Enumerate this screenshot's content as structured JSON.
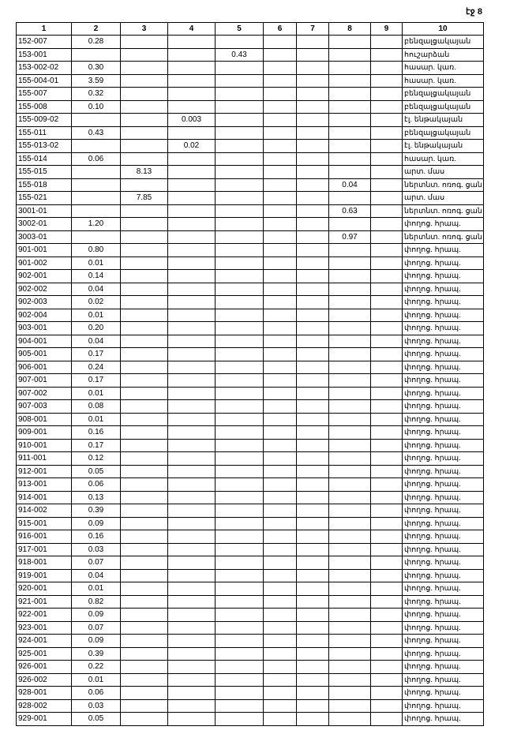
{
  "page_label": "էջ 8",
  "headers": [
    "1",
    "2",
    "3",
    "4",
    "5",
    "6",
    "7",
    "8",
    "9",
    "10"
  ],
  "rows": [
    [
      "152-007",
      "0.28",
      "",
      "",
      "",
      "",
      "",
      "",
      "",
      "բենզալցակայան"
    ],
    [
      "153-001",
      "",
      "",
      "",
      "0.43",
      "",
      "",
      "",
      "",
      "հուշարձան"
    ],
    [
      "153-002-02",
      "0.30",
      "",
      "",
      "",
      "",
      "",
      "",
      "",
      "հասար. կառ."
    ],
    [
      "155-004-01",
      "3.59",
      "",
      "",
      "",
      "",
      "",
      "",
      "",
      "հասար. կառ."
    ],
    [
      "155-007",
      "0.32",
      "",
      "",
      "",
      "",
      "",
      "",
      "",
      "բենզալցակայան"
    ],
    [
      "155-008",
      "0.10",
      "",
      "",
      "",
      "",
      "",
      "",
      "",
      "բենզալցակայան"
    ],
    [
      "155-009-02",
      "",
      "",
      "0.003",
      "",
      "",
      "",
      "",
      "",
      "էլ. ենթակայան"
    ],
    [
      "155-011",
      "0.43",
      "",
      "",
      "",
      "",
      "",
      "",
      "",
      "բենզալցակայան"
    ],
    [
      "155-013-02",
      "",
      "",
      "0.02",
      "",
      "",
      "",
      "",
      "",
      "էլ. ենթակայան"
    ],
    [
      "155-014",
      "0.06",
      "",
      "",
      "",
      "",
      "",
      "",
      "",
      "հասար. կառ."
    ],
    [
      "155-015",
      "",
      "8.13",
      "",
      "",
      "",
      "",
      "",
      "",
      "արտ. մաս"
    ],
    [
      "155-018",
      "",
      "",
      "",
      "",
      "",
      "",
      "0.04",
      "",
      "ներտնտ. ոռոգ. ցան"
    ],
    [
      "155-021",
      "",
      "7.85",
      "",
      "",
      "",
      "",
      "",
      "",
      "արտ. մաս"
    ],
    [
      "3001-01",
      "",
      "",
      "",
      "",
      "",
      "",
      "0.63",
      "",
      "ներտնտ. ոռոգ. ցան"
    ],
    [
      "3002-01",
      "1.20",
      "",
      "",
      "",
      "",
      "",
      "",
      "",
      "փողոց. հրապ."
    ],
    [
      "3003-01",
      "",
      "",
      "",
      "",
      "",
      "",
      "0.97",
      "",
      "ներտնտ. ոռոգ. ցան"
    ],
    [
      "901-001",
      "0.80",
      "",
      "",
      "",
      "",
      "",
      "",
      "",
      "փողոց. հրապ."
    ],
    [
      "901-002",
      "0.01",
      "",
      "",
      "",
      "",
      "",
      "",
      "",
      "փողոց. հրապ."
    ],
    [
      "902-001",
      "0.14",
      "",
      "",
      "",
      "",
      "",
      "",
      "",
      "փողոց. հրապ."
    ],
    [
      "902-002",
      "0.04",
      "",
      "",
      "",
      "",
      "",
      "",
      "",
      "փողոց. հրապ."
    ],
    [
      "902-003",
      "0.02",
      "",
      "",
      "",
      "",
      "",
      "",
      "",
      "փողոց. հրապ."
    ],
    [
      "902-004",
      "0.01",
      "",
      "",
      "",
      "",
      "",
      "",
      "",
      "փողոց. հրապ."
    ],
    [
      "903-001",
      "0.20",
      "",
      "",
      "",
      "",
      "",
      "",
      "",
      "փողոց. հրապ."
    ],
    [
      "904-001",
      "0.04",
      "",
      "",
      "",
      "",
      "",
      "",
      "",
      "փողոց. հրապ."
    ],
    [
      "905-001",
      "0.17",
      "",
      "",
      "",
      "",
      "",
      "",
      "",
      "փողոց. հրապ."
    ],
    [
      "906-001",
      "0.24",
      "",
      "",
      "",
      "",
      "",
      "",
      "",
      "փողոց. հրապ."
    ],
    [
      "907-001",
      "0.17",
      "",
      "",
      "",
      "",
      "",
      "",
      "",
      "փողոց. հրապ."
    ],
    [
      "907-002",
      "0.01",
      "",
      "",
      "",
      "",
      "",
      "",
      "",
      "փողոց. հրապ."
    ],
    [
      "907-003",
      "0.08",
      "",
      "",
      "",
      "",
      "",
      "",
      "",
      "փողոց. հրապ."
    ],
    [
      "908-001",
      "0.01",
      "",
      "",
      "",
      "",
      "",
      "",
      "",
      "փողոց. հրապ."
    ],
    [
      "909-001",
      "0.16",
      "",
      "",
      "",
      "",
      "",
      "",
      "",
      "փողոց. հրապ."
    ],
    [
      "910-001",
      "0.17",
      "",
      "",
      "",
      "",
      "",
      "",
      "",
      "փողոց. հրապ."
    ],
    [
      "911-001",
      "0.12",
      "",
      "",
      "",
      "",
      "",
      "",
      "",
      "փողոց. հրապ."
    ],
    [
      "912-001",
      "0.05",
      "",
      "",
      "",
      "",
      "",
      "",
      "",
      "փողոց. հրապ."
    ],
    [
      "913-001",
      "0.06",
      "",
      "",
      "",
      "",
      "",
      "",
      "",
      "փողոց. հրապ."
    ],
    [
      "914-001",
      "0.13",
      "",
      "",
      "",
      "",
      "",
      "",
      "",
      "փողոց. հրապ."
    ],
    [
      "914-002",
      "0.39",
      "",
      "",
      "",
      "",
      "",
      "",
      "",
      "փողոց. հրապ."
    ],
    [
      "915-001",
      "0.09",
      "",
      "",
      "",
      "",
      "",
      "",
      "",
      "փողոց. հրապ."
    ],
    [
      "916-001",
      "0.16",
      "",
      "",
      "",
      "",
      "",
      "",
      "",
      "փողոց. հրապ."
    ],
    [
      "917-001",
      "0.03",
      "",
      "",
      "",
      "",
      "",
      "",
      "",
      "փողոց. հրապ."
    ],
    [
      "918-001",
      "0.07",
      "",
      "",
      "",
      "",
      "",
      "",
      "",
      "փողոց. հրապ."
    ],
    [
      "919-001",
      "0.04",
      "",
      "",
      "",
      "",
      "",
      "",
      "",
      "փողոց. հրապ."
    ],
    [
      "920-001",
      "0.01",
      "",
      "",
      "",
      "",
      "",
      "",
      "",
      "փողոց. հրապ."
    ],
    [
      "921-001",
      "0.82",
      "",
      "",
      "",
      "",
      "",
      "",
      "",
      "փողոց. հրապ."
    ],
    [
      "922-001",
      "0.09",
      "",
      "",
      "",
      "",
      "",
      "",
      "",
      "փողոց. հրապ."
    ],
    [
      "923-001",
      "0.07",
      "",
      "",
      "",
      "",
      "",
      "",
      "",
      "փողոց. հրապ."
    ],
    [
      "924-001",
      "0.09",
      "",
      "",
      "",
      "",
      "",
      "",
      "",
      "փողոց. հրապ."
    ],
    [
      "925-001",
      "0.39",
      "",
      "",
      "",
      "",
      "",
      "",
      "",
      "փողոց. հրապ."
    ],
    [
      "926-001",
      "0.22",
      "",
      "",
      "",
      "",
      "",
      "",
      "",
      "փողոց. հրապ."
    ],
    [
      "926-002",
      "0.01",
      "",
      "",
      "",
      "",
      "",
      "",
      "",
      "փողոց. հրապ."
    ],
    [
      "928-001",
      "0.06",
      "",
      "",
      "",
      "",
      "",
      "",
      "",
      "փողոց. հրապ."
    ],
    [
      "928-002",
      "0.03",
      "",
      "",
      "",
      "",
      "",
      "",
      "",
      "փողոց. հրապ."
    ],
    [
      "929-001",
      "0.05",
      "",
      "",
      "",
      "",
      "",
      "",
      "",
      "փողոց. հրապ."
    ]
  ]
}
